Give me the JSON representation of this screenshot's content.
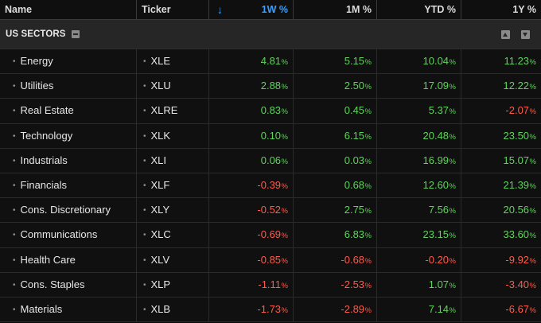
{
  "header": {
    "name": "Name",
    "ticker": "Ticker",
    "sort_arrow": "↓",
    "w1": "1W %",
    "m1": "1M %",
    "ytd": "YTD %",
    "y1": "1Y %"
  },
  "group": {
    "title": "US SECTORS"
  },
  "colors": {
    "positive": "#5fd35b",
    "negative": "#ff5a4a",
    "accent": "#3aa0ff"
  },
  "pct_sign": "%",
  "rows": [
    {
      "name": "Energy",
      "ticker": "XLE",
      "w1": "4.81",
      "m1": "5.15",
      "ytd": "10.04",
      "y1": "11.23"
    },
    {
      "name": "Utilities",
      "ticker": "XLU",
      "w1": "2.88",
      "m1": "2.50",
      "ytd": "17.09",
      "y1": "12.22"
    },
    {
      "name": "Real Estate",
      "ticker": "XLRE",
      "w1": "0.83",
      "m1": "0.45",
      "ytd": "5.37",
      "y1": "-2.07"
    },
    {
      "name": "Technology",
      "ticker": "XLK",
      "w1": "0.10",
      "m1": "6.15",
      "ytd": "20.48",
      "y1": "23.50"
    },
    {
      "name": "Industrials",
      "ticker": "XLI",
      "w1": "0.06",
      "m1": "0.03",
      "ytd": "16.99",
      "y1": "15.07"
    },
    {
      "name": "Financials",
      "ticker": "XLF",
      "w1": "-0.39",
      "m1": "0.68",
      "ytd": "12.60",
      "y1": "21.39"
    },
    {
      "name": "Cons. Discretionary",
      "ticker": "XLY",
      "w1": "-0.52",
      "m1": "2.75",
      "ytd": "7.56",
      "y1": "20.56"
    },
    {
      "name": "Communications",
      "ticker": "XLC",
      "w1": "-0.69",
      "m1": "6.83",
      "ytd": "23.15",
      "y1": "33.60"
    },
    {
      "name": "Health Care",
      "ticker": "XLV",
      "w1": "-0.85",
      "m1": "-0.68",
      "ytd": "-0.20",
      "y1": "-9.92"
    },
    {
      "name": "Cons. Staples",
      "ticker": "XLP",
      "w1": "-1.11",
      "m1": "-2.53",
      "ytd": "1.07",
      "y1": "-3.40"
    },
    {
      "name": "Materials",
      "ticker": "XLB",
      "w1": "-1.73",
      "m1": "-2.89",
      "ytd": "7.14",
      "y1": "-6.67"
    }
  ]
}
